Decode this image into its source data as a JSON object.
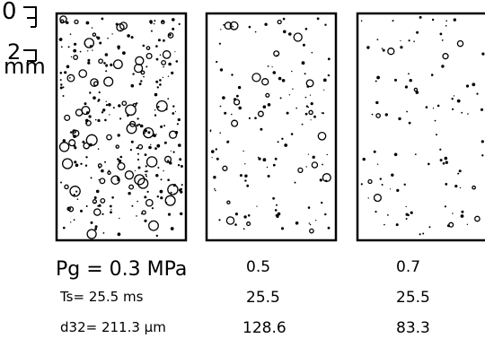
{
  "scale": {
    "top_tick": "0",
    "mid_tick": "2",
    "unit": "mm"
  },
  "columns": [
    {
      "pg": "Pg = 0.3 MPa",
      "ts": "Ts= 25.5 ms",
      "d": "d32= 211.3 µm"
    },
    {
      "pg": "0.5",
      "ts": "25.5",
      "d": "128.6"
    },
    {
      "pg": "0.7",
      "ts": "25.5",
      "d": "83.3"
    }
  ]
}
